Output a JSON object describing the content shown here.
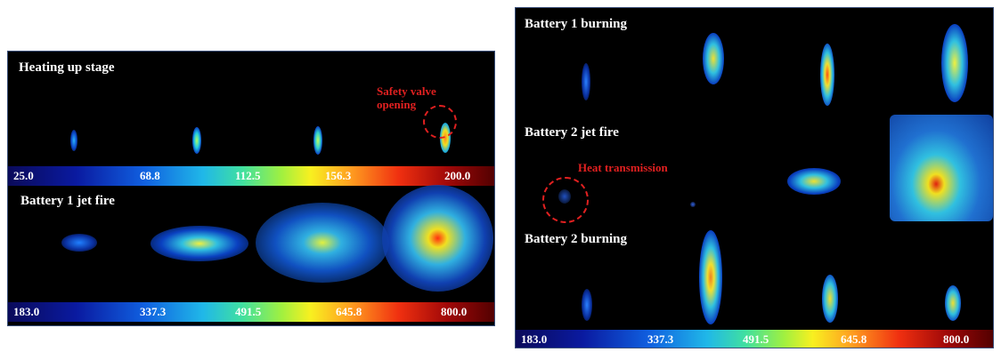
{
  "left": {
    "heating_label": "Heating up stage",
    "safety_note_line1": "Safety valve",
    "safety_note_line2": "opening",
    "scale_top": [
      "25.0",
      "68.8",
      "112.5",
      "156.3",
      "200.0"
    ],
    "jetfire_label": "Battery 1 jet fire",
    "scale_bottom": [
      "183.0",
      "337.3",
      "491.5",
      "645.8",
      "800.0"
    ]
  },
  "right": {
    "b1_burning_label": "Battery 1 burning",
    "b2_jetfire_label": "Battery 2 jet fire",
    "heat_note": "Heat transmission",
    "b2_burning_label": "Battery 2 burning",
    "scale": [
      "183.0",
      "337.3",
      "491.5",
      "645.8",
      "800.0"
    ]
  },
  "colors": {
    "annotation": "#e02020",
    "background": "#000000",
    "frame": "#3a4f7a"
  }
}
